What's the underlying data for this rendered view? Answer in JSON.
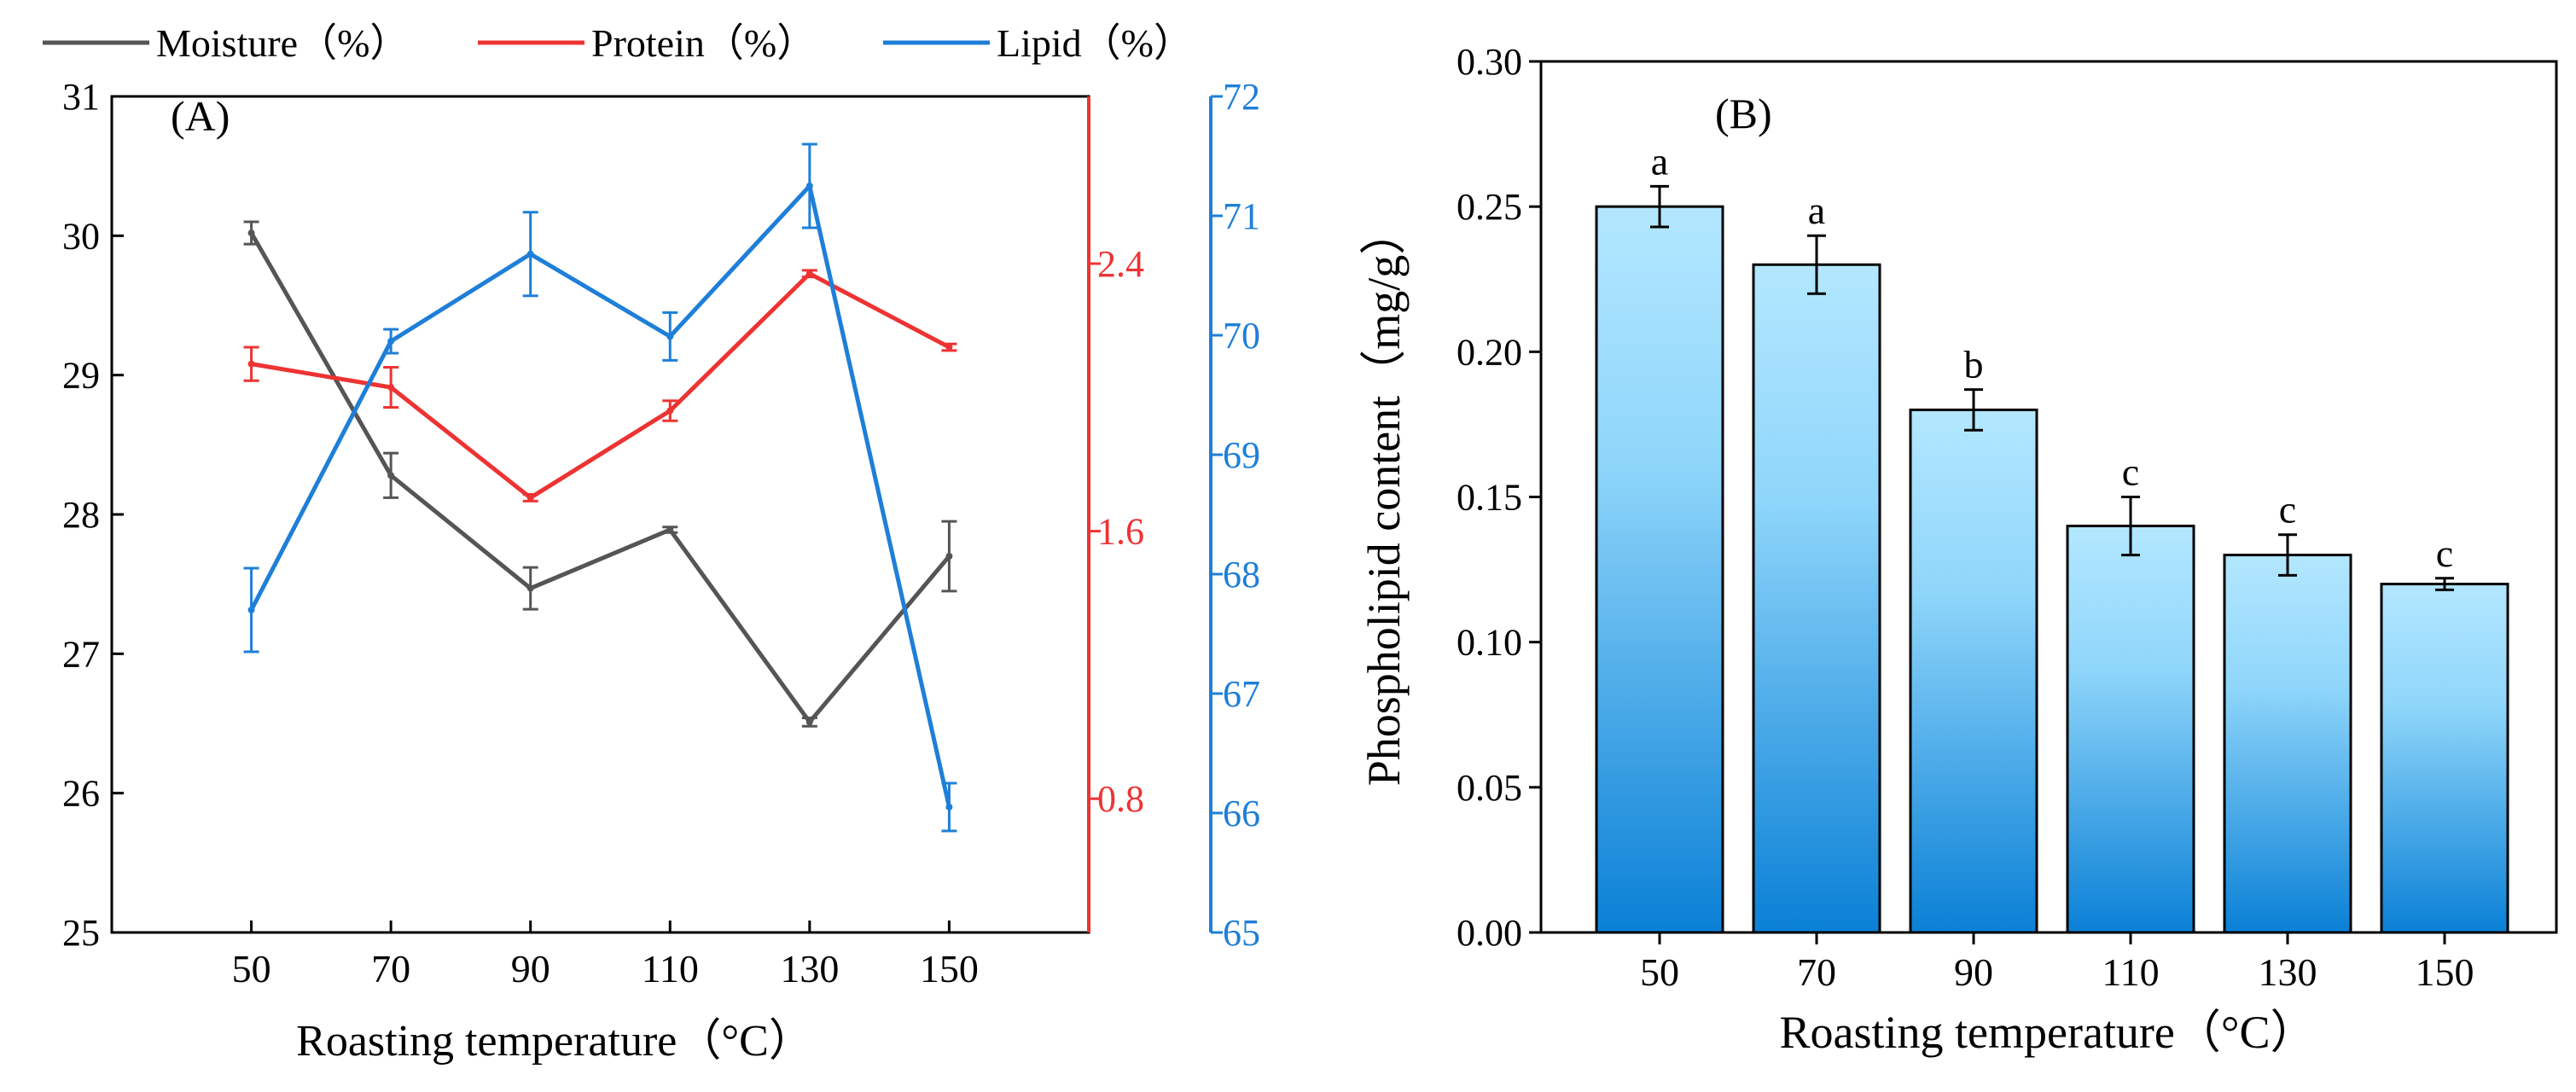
{
  "chart_data": [
    {
      "type": "line",
      "panel_label": "(A)",
      "xlabel": "Roasting temperature（°C）",
      "x": [
        50,
        70,
        90,
        110,
        130,
        150
      ],
      "x_ticks": [
        "50",
        "70",
        "90",
        "110",
        "130",
        "150"
      ],
      "xlim": [
        30,
        170
      ],
      "legend": {
        "placement": "top",
        "entries": [
          "Moisture（%）",
          "Protein（%）",
          "Lipid（%）"
        ]
      },
      "axes": [
        {
          "id": "left",
          "color": "#000000",
          "ylim": [
            25,
            31
          ],
          "ticks": [
            "25",
            "26",
            "27",
            "28",
            "29",
            "30",
            "31"
          ]
        },
        {
          "id": "right1",
          "color": "#ee3333",
          "ylim": [
            0.4,
            2.9
          ],
          "ticks": [
            "0.8",
            "1.6",
            "2.4"
          ]
        },
        {
          "id": "right2",
          "color": "#1e7fd8",
          "ylim": [
            65,
            72
          ],
          "ticks": [
            "65",
            "66",
            "67",
            "68",
            "69",
            "70",
            "71",
            "72"
          ]
        }
      ],
      "series": [
        {
          "name": "Moisture（%）",
          "axis": "left",
          "color": "#555555",
          "values": [
            30.02,
            28.28,
            27.47,
            27.89,
            26.51,
            27.7
          ],
          "errors": [
            0.08,
            0.16,
            0.15,
            0.02,
            0.03,
            0.25
          ]
        },
        {
          "name": "Protein（%）",
          "axis": "right1",
          "color": "#ee3333",
          "values": [
            2.1,
            2.03,
            1.7,
            1.96,
            2.37,
            2.15
          ],
          "errors": [
            0.05,
            0.06,
            0.01,
            0.03,
            0.01,
            0.01
          ]
        },
        {
          "name": "Lipid（%）",
          "axis": "right2",
          "color": "#1e7fd8",
          "values": [
            67.7,
            69.95,
            70.68,
            69.99,
            71.25,
            66.05
          ],
          "errors": [
            0.35,
            0.1,
            0.35,
            0.2,
            0.35,
            0.2
          ]
        }
      ]
    },
    {
      "type": "bar",
      "panel_label": "(B)",
      "xlabel": "Roasting temperature（°C）",
      "ylabel": "Phospholipid content（mg/g）",
      "categories": [
        "50",
        "70",
        "90",
        "110",
        "130",
        "150"
      ],
      "values": [
        0.25,
        0.23,
        0.18,
        0.14,
        0.13,
        0.12
      ],
      "errors": [
        0.007,
        0.01,
        0.007,
        0.01,
        0.007,
        0.002
      ],
      "significance": [
        "a",
        "a",
        "b",
        "c",
        "c",
        "c"
      ],
      "ylim": [
        0,
        0.3
      ],
      "y_ticks": [
        "0.00",
        "0.05",
        "0.10",
        "0.15",
        "0.20",
        "0.25",
        "0.30"
      ],
      "bar_color_top": "#b3e7ff",
      "bar_color_bottom": "#0a80d6"
    }
  ]
}
